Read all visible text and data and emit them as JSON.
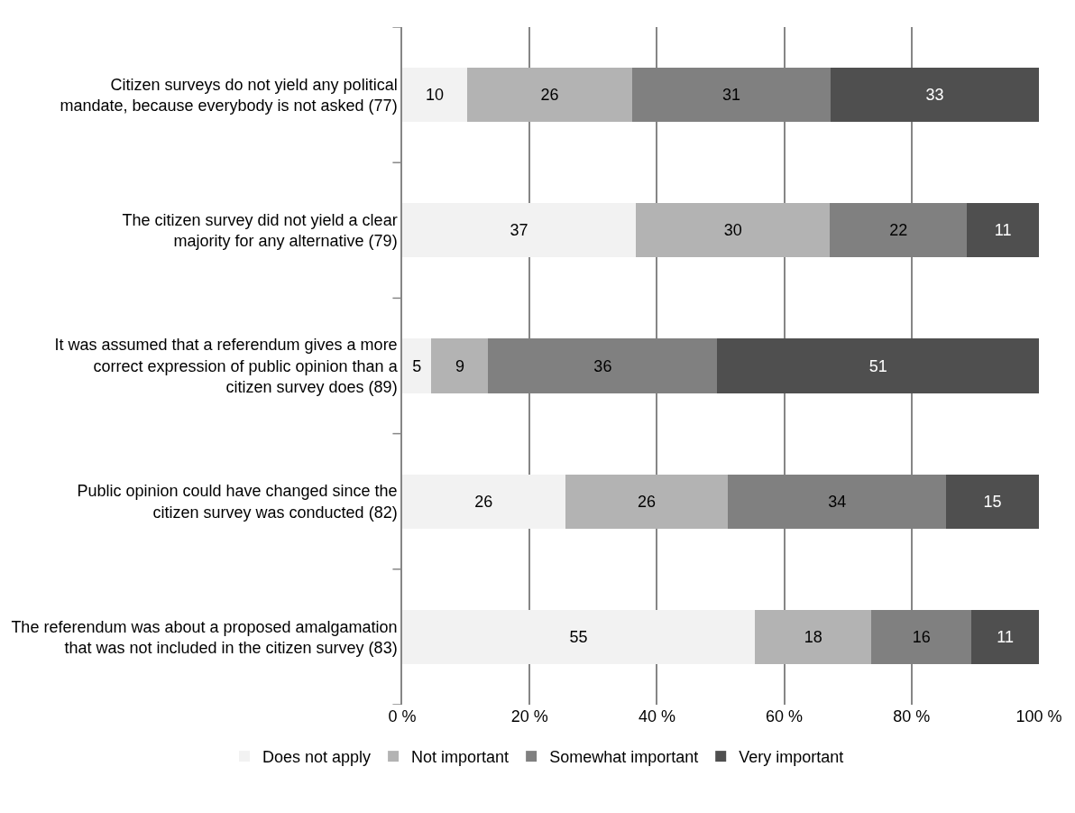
{
  "chart_data": {
    "type": "bar",
    "orientation": "horizontal",
    "stacked": true,
    "categories": [
      "Citizen surveys do not yield any political mandate, because everybody is not asked (77)",
      "The citizen survey did not yield a clear majority for any alternative (79)",
      "It was assumed that a referendum gives a more correct expression of public opinion than a citizen survey does (89)",
      "Public opinion could have changed since the citizen survey was conducted (82)",
      "The referendum was about a proposed amalgamation that was not included in the citizen survey (83)"
    ],
    "series": [
      {
        "name": "Does not apply",
        "color": "#f2f2f2",
        "values": [
          10.2,
          36.7,
          4.6,
          25.6,
          55.4
        ],
        "value_labels": [
          "10",
          "37",
          "5",
          "26",
          "55"
        ]
      },
      {
        "name": "Not important",
        "color": "#b3b3b3",
        "values": [
          25.9,
          30.5,
          8.9,
          25.6,
          18.3
        ],
        "value_labels": [
          "26",
          "30",
          "9",
          "26",
          "18"
        ]
      },
      {
        "name": "Somewhat important",
        "color": "#808080",
        "values": [
          31.2,
          21.5,
          36.0,
          34.2,
          15.7
        ],
        "value_labels": [
          "31",
          "22",
          "36",
          "34",
          "16"
        ]
      },
      {
        "name": "Very important",
        "color": "#4f4f4f",
        "values": [
          32.7,
          11.3,
          50.5,
          14.6,
          10.6
        ],
        "value_labels": [
          "33",
          "11",
          "51",
          "15",
          "11"
        ]
      }
    ],
    "xlim": [
      0,
      100
    ],
    "xticks": [
      {
        "value": 0,
        "label": "0 %"
      },
      {
        "value": 20,
        "label": "20 %"
      },
      {
        "value": 40,
        "label": "40 %"
      },
      {
        "value": 60,
        "label": "60 %"
      },
      {
        "value": 80,
        "label": "80 %"
      },
      {
        "value": 100,
        "label": "100 %"
      }
    ],
    "grid": "x",
    "legend": "bottom"
  }
}
